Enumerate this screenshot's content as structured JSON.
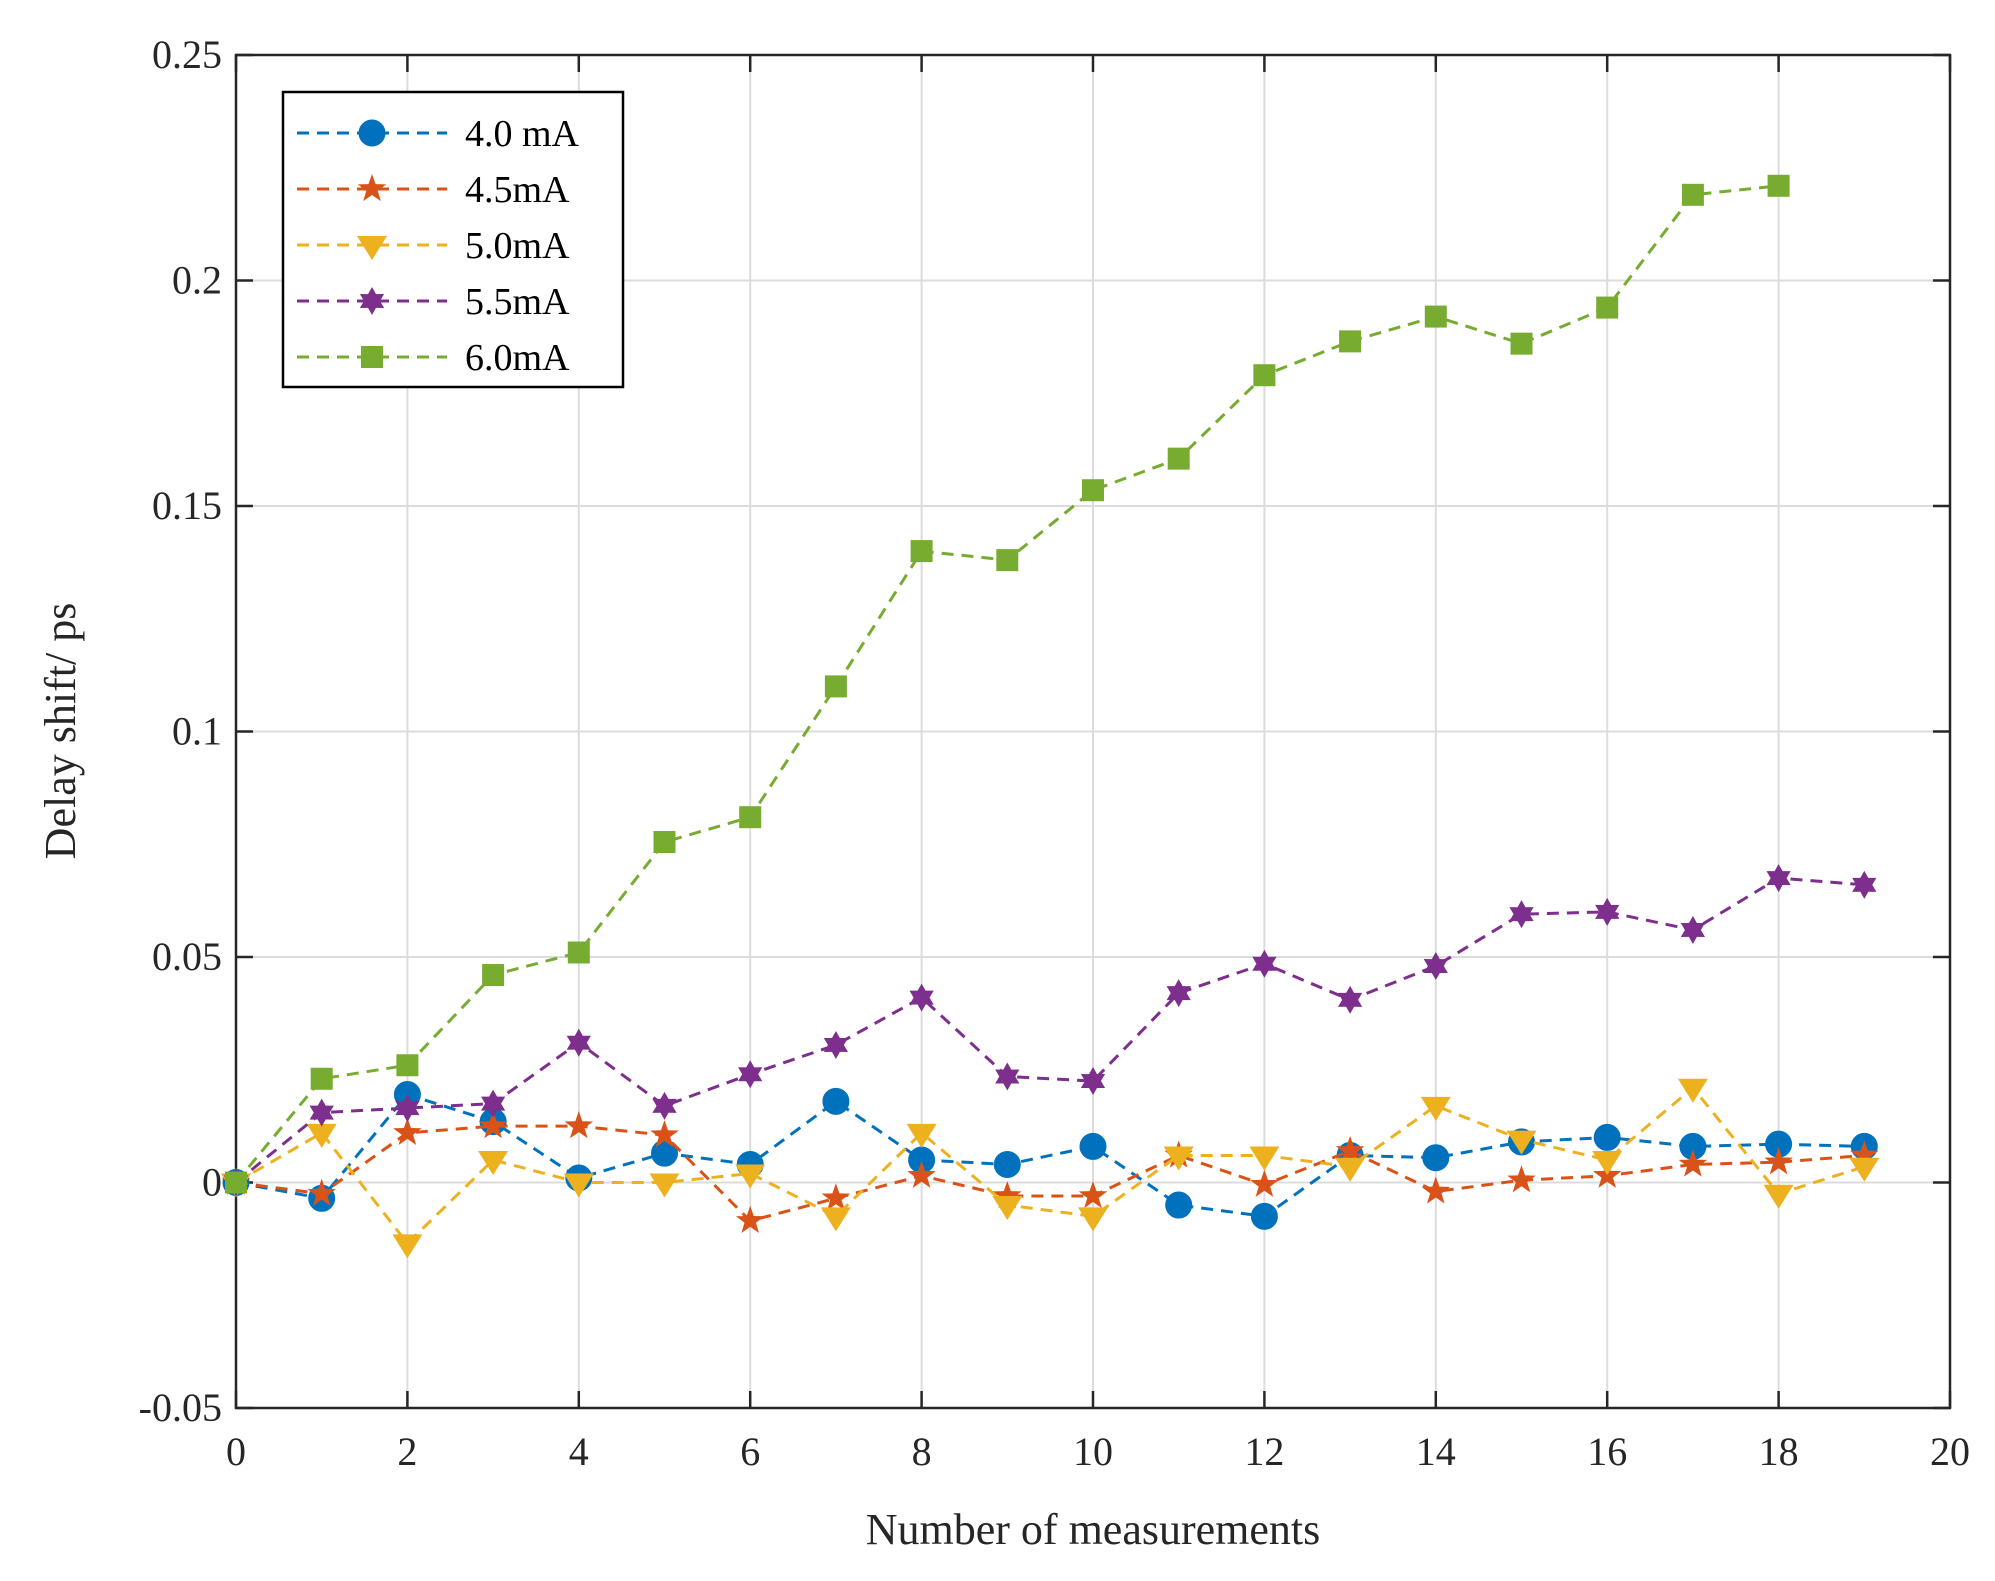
{
  "chart_data": {
    "type": "line",
    "title": "",
    "xlabel": "Number of measurements",
    "ylabel": "Delay shift/ ps",
    "xlim": [
      0,
      20
    ],
    "ylim": [
      -0.05,
      0.25
    ],
    "xticks": [
      0,
      2,
      4,
      6,
      8,
      10,
      12,
      14,
      16,
      18,
      20
    ],
    "xtick_labels": [
      "0",
      "2",
      "4",
      "6",
      "8",
      "10",
      "12",
      "14",
      "16",
      "18",
      "20"
    ],
    "yticks": [
      -0.05,
      0,
      0.05,
      0.1,
      0.15,
      0.2,
      0.25
    ],
    "ytick_labels": [
      "-0.05",
      "0",
      "0.05",
      "0.1",
      "0.15",
      "0.2",
      "0.25"
    ],
    "grid": true,
    "legend_position": "top-left",
    "x": [
      0,
      1,
      2,
      3,
      4,
      5,
      6,
      7,
      8,
      9,
      10,
      11,
      12,
      13,
      14,
      15,
      16,
      17,
      18,
      19
    ],
    "series": [
      {
        "name": "4.0 mA",
        "color": "#0072BD",
        "marker": "circle",
        "values": [
          0,
          -0.0035,
          0.0195,
          0.0135,
          0.001,
          0.0065,
          0.004,
          0.018,
          0.005,
          0.004,
          0.008,
          -0.005,
          -0.0075,
          0.006,
          0.0055,
          0.009,
          0.01,
          0.008,
          0.0085,
          0.008
        ]
      },
      {
        "name": "4.5mA",
        "color": "#D95319",
        "marker": "star",
        "values": [
          0,
          -0.0025,
          0.011,
          0.0125,
          0.0125,
          0.0105,
          -0.0085,
          -0.0035,
          0.0015,
          -0.003,
          -0.003,
          0.006,
          -0.0005,
          0.007,
          -0.002,
          0.0005,
          0.0015,
          0.004,
          0.0045,
          0.006
        ]
      },
      {
        "name": "5.0mA",
        "color": "#EDB120",
        "marker": "triangle-down",
        "values": [
          0,
          0.011,
          -0.0135,
          0.005,
          0,
          0,
          0.002,
          -0.0075,
          0.011,
          -0.005,
          -0.0075,
          0.006,
          0.006,
          0.0035,
          0.017,
          0.0095,
          0.005,
          0.021,
          -0.0025,
          0.0035
        ]
      },
      {
        "name": "5.5mA",
        "color": "#7E2F8E",
        "marker": "hexagram",
        "values": [
          0,
          0.0155,
          0.0165,
          0.0175,
          0.031,
          0.017,
          0.024,
          0.0305,
          0.041,
          0.0235,
          0.0225,
          0.042,
          0.0485,
          0.0405,
          0.048,
          0.0595,
          0.06,
          0.056,
          0.0675,
          0.066
        ]
      },
      {
        "name": "6.0mA",
        "color": "#77AC30",
        "marker": "square",
        "values": [
          0,
          0.023,
          0.026,
          0.046,
          0.051,
          0.0755,
          0.081,
          0.11,
          0.14,
          0.138,
          0.1535,
          0.1605,
          0.179,
          0.1865,
          0.192,
          0.186,
          0.194,
          0.219,
          0.221,
          null
        ]
      }
    ]
  }
}
